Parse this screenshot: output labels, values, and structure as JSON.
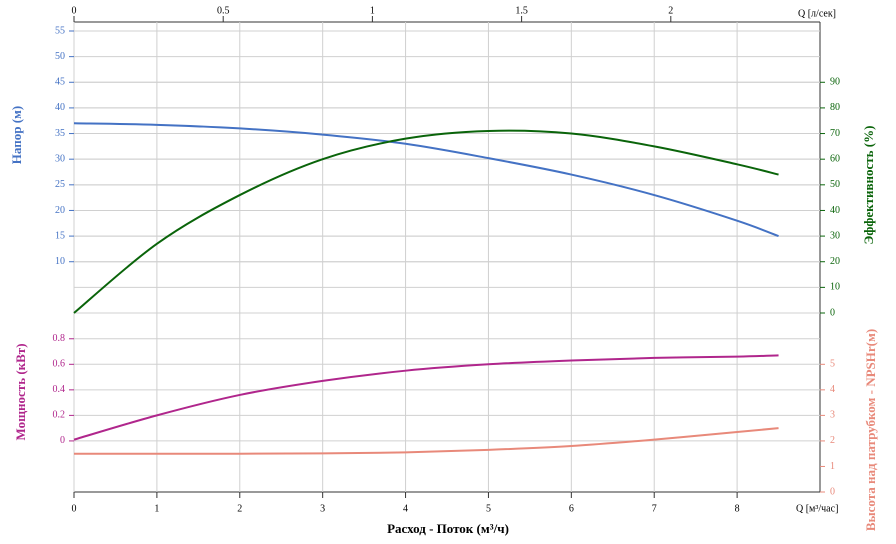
{
  "chart_data": [
    {
      "type": "line",
      "x2label": "Q [л/сек]",
      "x2lim": [
        0,
        2.5
      ],
      "x2ticks": [
        0,
        0.5,
        1,
        1.5,
        2
      ],
      "ylabel": "Напор (м)",
      "ylim": [
        0,
        55
      ],
      "yticks": [
        10,
        15,
        20,
        25,
        30,
        35,
        40,
        45,
        50,
        55
      ],
      "y2label": "Эффективность (%)",
      "y2lim": [
        0,
        110
      ],
      "y2ticks": [
        0,
        10,
        20,
        30,
        40,
        50,
        60,
        70,
        80,
        90
      ],
      "grid": true,
      "x": [
        0,
        1,
        2,
        3,
        4,
        5,
        6,
        7,
        8,
        8.5
      ],
      "series": [
        {
          "color": "#4472c4",
          "values": [
            37,
            36.7,
            36,
            34.8,
            33,
            30.2,
            27,
            23,
            18,
            15
          ]
        },
        {
          "color": "#0a640a",
          "axis": "y2",
          "values": [
            0,
            27,
            46,
            60,
            68,
            71,
            70,
            65,
            58,
            54
          ]
        }
      ]
    },
    {
      "type": "line",
      "xlabel": "Расход - Поток (м³/ч)",
      "xunit": "Q [м³/час]",
      "xlim": [
        0,
        9
      ],
      "xticks": [
        0,
        1,
        2,
        3,
        4,
        5,
        6,
        7,
        8
      ],
      "ylabel": "Мощность (кВт)",
      "ylim": [
        -0.4,
        0.9
      ],
      "yticks": [
        0,
        0.2,
        0.4,
        0.6,
        0.8
      ],
      "y2label": "Высота над патрубком - NPSHr(м)",
      "y2lim": [
        0,
        6.5
      ],
      "y2ticks": [
        0,
        1,
        2,
        3,
        4,
        5
      ],
      "grid": true,
      "x": [
        0,
        1,
        2,
        3,
        4,
        5,
        6,
        7,
        8,
        8.5
      ],
      "series": [
        {
          "color": "#b0268c",
          "values": [
            0.01,
            0.2,
            0.36,
            0.47,
            0.55,
            0.6,
            0.63,
            0.65,
            0.66,
            0.67
          ]
        },
        {
          "color": "#e8897a",
          "axis": "y2",
          "values": [
            1.5,
            1.5,
            1.5,
            1.51,
            1.55,
            1.65,
            1.8,
            2.05,
            2.35,
            2.5
          ]
        }
      ]
    }
  ]
}
